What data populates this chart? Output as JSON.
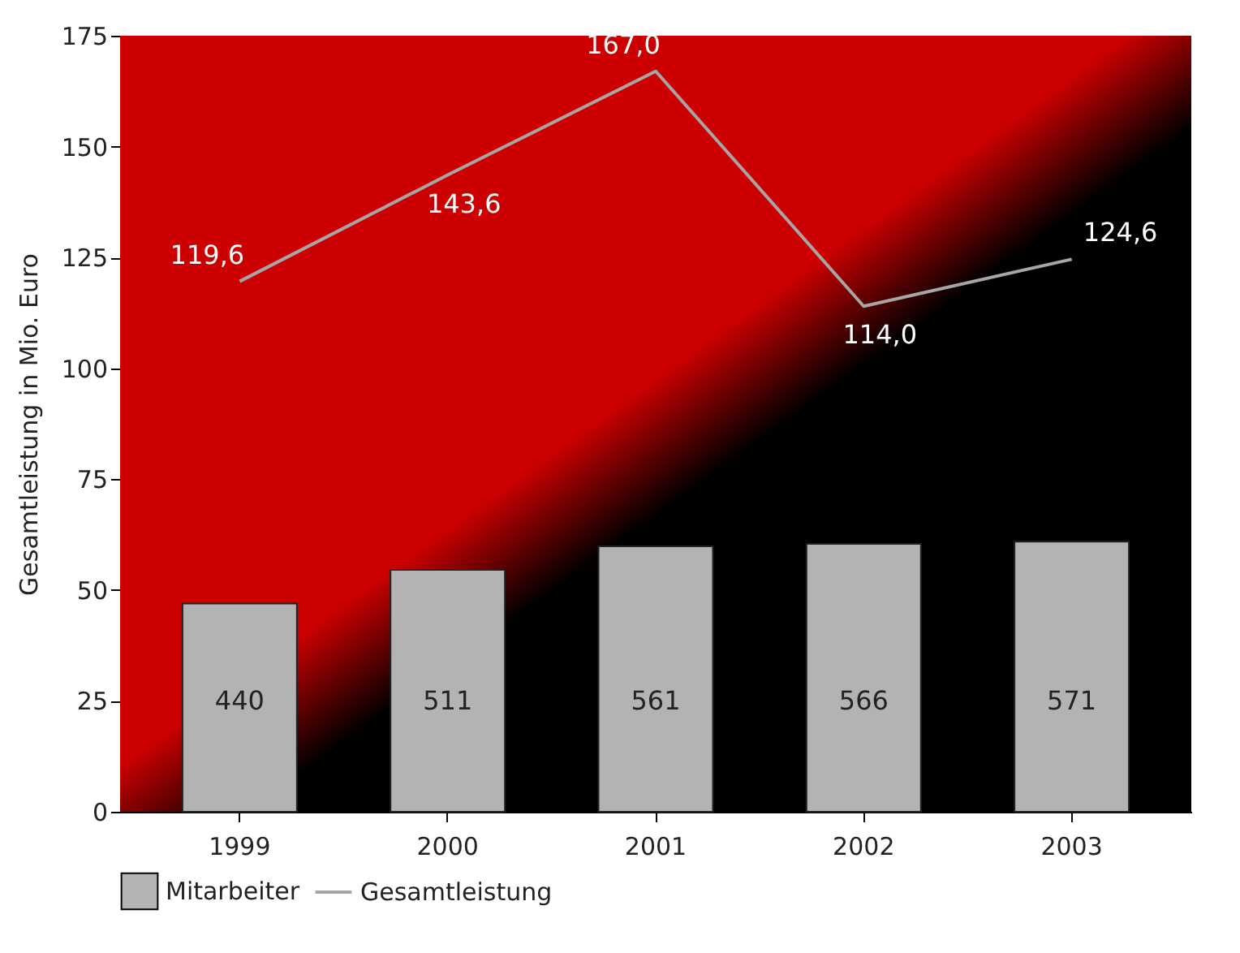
{
  "chart_data": {
    "type": "bar",
    "ylabel": "Gesamtleistung in Mio. Euro",
    "categories": [
      "1999",
      "2000",
      "2001",
      "2002",
      "2003"
    ],
    "ylim": [
      0,
      175
    ],
    "yticks": [
      0,
      25,
      50,
      75,
      100,
      125,
      150,
      175
    ],
    "y2lim": [
      0,
      1640
    ],
    "legend": "bottom",
    "series": [
      {
        "name": "Mitarbeiter",
        "axis": "y2",
        "color": "#b3b3b3",
        "values": [
          440,
          511,
          561,
          566,
          571
        ],
        "value_labels": [
          "440",
          "511",
          "561",
          "566",
          "571"
        ]
      },
      {
        "name": "Gesamtleistung",
        "type": "line",
        "color": "#a6a6a6",
        "values": [
          119.6,
          143.6,
          167.0,
          114.0,
          124.6
        ],
        "value_labels": [
          "119,6",
          "143,6",
          "167,0",
          "114,0",
          "124,6"
        ]
      }
    ]
  }
}
